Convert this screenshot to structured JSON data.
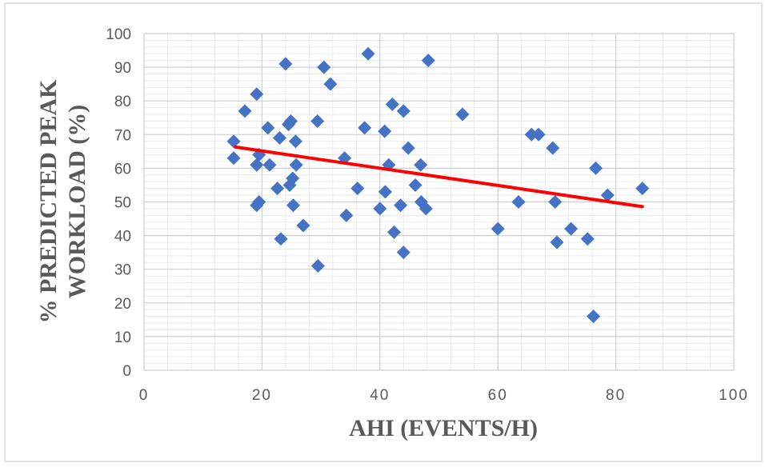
{
  "chart_data": {
    "type": "scatter",
    "title": "",
    "xlabel": "AHI (EVENTS/H)",
    "ylabel_lines": [
      "% PREDICTED PEAK",
      "WORKLOAD (%)"
    ],
    "xlim": [
      0,
      100
    ],
    "ylim": [
      0,
      100
    ],
    "x_ticks": [
      "0",
      "20",
      "40",
      "60",
      "80",
      "100"
    ],
    "y_ticks": [
      "0",
      "10",
      "20",
      "30",
      "40",
      "50",
      "60",
      "70",
      "80",
      "90",
      "100"
    ],
    "grid": true,
    "legend": "none",
    "point_color": "#4472c4",
    "trend_color": "#ff0000",
    "trendline": {
      "x": [
        15.5,
        84.5
      ],
      "y": [
        66.3,
        48.6
      ]
    },
    "points": [
      {
        "x": 15.2,
        "y": 68
      },
      {
        "x": 15.2,
        "y": 63
      },
      {
        "x": 17.1,
        "y": 77
      },
      {
        "x": 19.1,
        "y": 82
      },
      {
        "x": 19.1,
        "y": 61
      },
      {
        "x": 19.1,
        "y": 49
      },
      {
        "x": 19.5,
        "y": 64
      },
      {
        "x": 19.5,
        "y": 50
      },
      {
        "x": 21.0,
        "y": 72
      },
      {
        "x": 21.3,
        "y": 61
      },
      {
        "x": 22.6,
        "y": 54
      },
      {
        "x": 23.0,
        "y": 69
      },
      {
        "x": 23.2,
        "y": 39
      },
      {
        "x": 24.0,
        "y": 91
      },
      {
        "x": 24.5,
        "y": 73
      },
      {
        "x": 24.9,
        "y": 74
      },
      {
        "x": 24.7,
        "y": 55
      },
      {
        "x": 25.2,
        "y": 57
      },
      {
        "x": 25.3,
        "y": 49
      },
      {
        "x": 25.7,
        "y": 68
      },
      {
        "x": 25.8,
        "y": 61
      },
      {
        "x": 27.0,
        "y": 43
      },
      {
        "x": 29.4,
        "y": 74
      },
      {
        "x": 29.5,
        "y": 31
      },
      {
        "x": 30.5,
        "y": 90
      },
      {
        "x": 31.6,
        "y": 85
      },
      {
        "x": 34.0,
        "y": 63
      },
      {
        "x": 34.3,
        "y": 46
      },
      {
        "x": 36.2,
        "y": 54
      },
      {
        "x": 37.4,
        "y": 72
      },
      {
        "x": 38.0,
        "y": 94
      },
      {
        "x": 40.0,
        "y": 48
      },
      {
        "x": 40.8,
        "y": 71
      },
      {
        "x": 40.9,
        "y": 53
      },
      {
        "x": 41.5,
        "y": 61
      },
      {
        "x": 42.1,
        "y": 79
      },
      {
        "x": 42.4,
        "y": 41
      },
      {
        "x": 43.5,
        "y": 49
      },
      {
        "x": 44.0,
        "y": 77
      },
      {
        "x": 44.0,
        "y": 35
      },
      {
        "x": 44.8,
        "y": 66
      },
      {
        "x": 46.0,
        "y": 55
      },
      {
        "x": 46.9,
        "y": 61
      },
      {
        "x": 47.0,
        "y": 50
      },
      {
        "x": 47.8,
        "y": 48
      },
      {
        "x": 48.2,
        "y": 92
      },
      {
        "x": 54.0,
        "y": 76
      },
      {
        "x": 60.0,
        "y": 42
      },
      {
        "x": 63.5,
        "y": 50
      },
      {
        "x": 65.7,
        "y": 70
      },
      {
        "x": 66.9,
        "y": 70
      },
      {
        "x": 69.3,
        "y": 66
      },
      {
        "x": 69.7,
        "y": 50
      },
      {
        "x": 70.0,
        "y": 38
      },
      {
        "x": 72.4,
        "y": 42
      },
      {
        "x": 75.2,
        "y": 39
      },
      {
        "x": 76.2,
        "y": 16
      },
      {
        "x": 76.6,
        "y": 60
      },
      {
        "x": 78.6,
        "y": 52
      },
      {
        "x": 84.5,
        "y": 54
      }
    ]
  }
}
